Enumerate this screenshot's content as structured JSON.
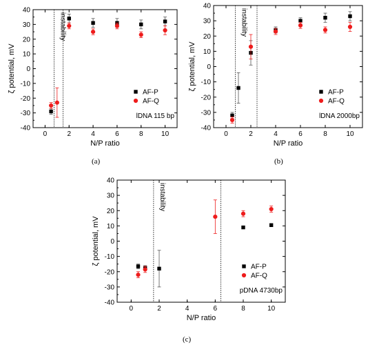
{
  "captions": [
    "(a)",
    "(b)",
    "(c)"
  ],
  "style": {
    "colors": {
      "AF-P": "#000000",
      "AF-Q": "#ee1c1c"
    },
    "axis_color": "#000000",
    "errorbar_colors": {
      "AF-P": "#555555",
      "AF-Q": "#ee1c1c"
    }
  },
  "chart_data": [
    {
      "id": "a",
      "type": "scatter",
      "xlabel": "N/P ratio",
      "ylabel": "ζ potential, mV",
      "xlim": [
        -1,
        11
      ],
      "ylim": [
        -40,
        40
      ],
      "xticks": [
        0,
        2,
        4,
        6,
        8,
        10
      ],
      "yticks": [
        -40,
        -30,
        -20,
        -10,
        0,
        10,
        20,
        30,
        40
      ],
      "grid": false,
      "annotation": "lDNA 115 bp",
      "region_label": "instability",
      "instability_x": [
        0.75,
        1.5
      ],
      "legend_position": "lower-right",
      "series": [
        {
          "name": "AF-P",
          "marker": "square",
          "x": [
            0.5,
            2,
            4,
            6,
            8,
            10
          ],
          "y": [
            -29,
            34,
            31,
            31,
            30,
            32
          ],
          "err": [
            2,
            3,
            3,
            3,
            3,
            3
          ]
        },
        {
          "name": "AF-Q",
          "marker": "circle",
          "x": [
            0.5,
            1,
            2,
            4,
            6,
            8,
            10
          ],
          "y": [
            -25,
            -23,
            29,
            25,
            29,
            23,
            26
          ],
          "err": [
            2,
            10,
            2,
            2,
            2,
            2,
            3
          ]
        }
      ]
    },
    {
      "id": "b",
      "type": "scatter",
      "xlabel": "N/P ratio",
      "ylabel": "ζ potential, mV",
      "xlim": [
        -1,
        11
      ],
      "ylim": [
        -40,
        40
      ],
      "xticks": [
        0,
        2,
        4,
        6,
        8,
        10
      ],
      "yticks": [
        -40,
        -30,
        -20,
        -10,
        0,
        10,
        20,
        30,
        40
      ],
      "grid": false,
      "annotation": "lDNA 2000bp",
      "region_label": "instability",
      "instability_x": [
        0.75,
        2.5
      ],
      "legend_position": "lower-right",
      "series": [
        {
          "name": "AF-P",
          "marker": "square",
          "x": [
            0.5,
            1,
            2,
            4,
            6,
            8,
            10
          ],
          "y": [
            -32,
            -14,
            9,
            24,
            30,
            32,
            33
          ],
          "err": [
            2,
            10,
            8,
            2,
            2,
            3,
            3
          ]
        },
        {
          "name": "AF-Q",
          "marker": "circle",
          "x": [
            0.5,
            2,
            4,
            6,
            8,
            10
          ],
          "y": [
            -35,
            13,
            23,
            27,
            24,
            26
          ],
          "err": [
            2,
            8,
            2,
            2,
            2,
            3
          ]
        }
      ]
    },
    {
      "id": "c",
      "type": "scatter",
      "xlabel": "N/P ratio",
      "ylabel": "ζ potential, mV",
      "xlim": [
        -1,
        11
      ],
      "ylim": [
        -40,
        40
      ],
      "xticks": [
        0,
        2,
        4,
        6,
        8,
        10
      ],
      "yticks": [
        -40,
        -30,
        -20,
        -10,
        0,
        10,
        20,
        30,
        40
      ],
      "grid": false,
      "annotation": "pDNA 4730bp",
      "region_label": "instability",
      "instability_x": [
        1.6,
        6.4
      ],
      "legend_position": "lower-right",
      "series": [
        {
          "name": "AF-P",
          "marker": "square",
          "x": [
            0.5,
            1,
            2,
            8,
            10
          ],
          "y": [
            -16.5,
            -17.5,
            -18,
            9,
            10.5
          ],
          "err": [
            1.5,
            1.5,
            12,
            0.5,
            1
          ]
        },
        {
          "name": "AF-Q",
          "marker": "circle",
          "x": [
            0.5,
            1,
            6,
            8,
            10
          ],
          "y": [
            -22,
            -18.5,
            16,
            18,
            21
          ],
          "err": [
            2,
            2,
            11,
            2,
            2
          ]
        }
      ]
    }
  ]
}
